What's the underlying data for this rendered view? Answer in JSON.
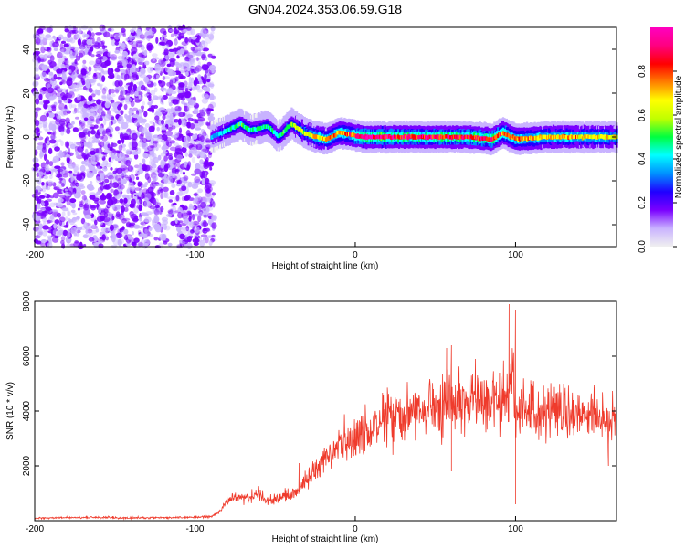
{
  "title": "GN04.2024.353.06.59.G18",
  "chart_data": [
    {
      "type": "heatmap",
      "xlabel": "Height of straight line (km)",
      "ylabel": "Frequency (Hz)",
      "xlim": [
        -200,
        163
      ],
      "ylim": [
        -50,
        50
      ],
      "xticks": [
        -200,
        -100,
        0,
        100
      ],
      "yticks": [
        -40,
        -20,
        0,
        20,
        40
      ],
      "colorbar": {
        "label": "Normalized spectral amplitude",
        "range": [
          0,
          1
        ],
        "ticks": [
          0.0,
          0.2,
          0.4,
          0.6,
          0.8
        ],
        "tick_labels": [
          "0.0",
          "0.2",
          "0.4",
          "0.6",
          "0.8"
        ],
        "colors": [
          "#f0f0f0",
          "#c9b3ff",
          "#7a00ff",
          "#2000ff",
          "#0090ff",
          "#00ffff",
          "#00ff40",
          "#c0ff00",
          "#ffff00",
          "#ff8000",
          "#ff0000",
          "#ff0080",
          "#ff00c0"
        ]
      },
      "noise_region": {
        "x_range": [
          -200,
          -88
        ],
        "y_range": [
          -50,
          50
        ],
        "amplitude_range": [
          0.05,
          0.2
        ]
      },
      "signal_ridge": [
        {
          "x": -90,
          "y": 0,
          "amp": 0.35
        },
        {
          "x": -80,
          "y": 3,
          "amp": 0.45
        },
        {
          "x": -72,
          "y": 6,
          "amp": 0.5
        },
        {
          "x": -65,
          "y": 3,
          "amp": 0.45
        },
        {
          "x": -55,
          "y": 5,
          "amp": 0.5
        },
        {
          "x": -48,
          "y": 0,
          "amp": 0.45
        },
        {
          "x": -40,
          "y": 6,
          "amp": 0.55
        },
        {
          "x": -32,
          "y": 2,
          "amp": 0.6
        },
        {
          "x": -25,
          "y": 0,
          "amp": 0.7
        },
        {
          "x": -18,
          "y": -1,
          "amp": 0.7
        },
        {
          "x": -10,
          "y": 2,
          "amp": 0.75
        },
        {
          "x": -2,
          "y": 1,
          "amp": 0.8
        },
        {
          "x": 5,
          "y": 0,
          "amp": 0.92
        },
        {
          "x": 15,
          "y": 0,
          "amp": 0.95
        },
        {
          "x": 25,
          "y": 0,
          "amp": 0.9
        },
        {
          "x": 40,
          "y": 0,
          "amp": 0.85
        },
        {
          "x": 55,
          "y": 0,
          "amp": 0.88
        },
        {
          "x": 70,
          "y": 0,
          "amp": 0.85
        },
        {
          "x": 85,
          "y": -1,
          "amp": 0.85
        },
        {
          "x": 92,
          "y": 2,
          "amp": 0.8
        },
        {
          "x": 100,
          "y": -1,
          "amp": 0.75
        },
        {
          "x": 120,
          "y": 0,
          "amp": 0.7
        },
        {
          "x": 140,
          "y": 0,
          "amp": 0.7
        },
        {
          "x": 163,
          "y": 0,
          "amp": 0.65
        }
      ]
    },
    {
      "type": "line",
      "xlabel": "Height of straight line (km)",
      "ylabel": "SNR (10 * v/v)",
      "xlim": [
        -200,
        163
      ],
      "ylim": [
        0,
        8000
      ],
      "xticks": [
        -200,
        -100,
        0,
        100
      ],
      "yticks": [
        2000,
        4000,
        6000,
        8000
      ],
      "color": "#ef3b2c",
      "series": [
        {
          "x": [
            -200,
            -180,
            -160,
            -140,
            -120,
            -100,
            -90,
            -85,
            -80,
            -75,
            -70,
            -65,
            -60,
            -55,
            -50,
            -45,
            -40,
            -35,
            -30,
            -25,
            -20,
            -15,
            -10,
            -5,
            0,
            5,
            10,
            15,
            20,
            25,
            30,
            35,
            40,
            45,
            50,
            55,
            60,
            65,
            70,
            75,
            80,
            85,
            90,
            95,
            98,
            100,
            105,
            110,
            115,
            120,
            125,
            130,
            135,
            140,
            145,
            150,
            155,
            160,
            163
          ],
          "y": [
            100,
            110,
            120,
            100,
            110,
            120,
            150,
            300,
            700,
            900,
            800,
            900,
            1000,
            700,
            800,
            900,
            1000,
            1100,
            1500,
            1800,
            2100,
            2400,
            2700,
            2900,
            3000,
            3200,
            3300,
            3600,
            3800,
            3900,
            4000,
            4100,
            4200,
            4100,
            4200,
            4300,
            4500,
            4300,
            4200,
            4300,
            4100,
            4200,
            4300,
            4800,
            5000,
            4200,
            4000,
            4200,
            4000,
            3900,
            3900,
            3800,
            3900,
            3800,
            3700,
            3800,
            3700,
            3600,
            3700
          ]
        }
      ],
      "spikes": [
        {
          "x": -35,
          "y": 2100
        },
        {
          "x": 20,
          "y": 4200
        },
        {
          "x": 40,
          "y": 4500
        },
        {
          "x": 57,
          "y": 6300
        },
        {
          "x": 60,
          "y": 6400
        },
        {
          "x": 60,
          "y": 1800
        },
        {
          "x": 75,
          "y": 5900
        },
        {
          "x": 90,
          "y": 5400
        },
        {
          "x": 96,
          "y": 7900
        },
        {
          "x": 100,
          "y": 7700
        },
        {
          "x": 100,
          "y": 600
        },
        {
          "x": 110,
          "y": 5000
        },
        {
          "x": 130,
          "y": 5000
        },
        {
          "x": 158,
          "y": 2000
        }
      ]
    }
  ]
}
